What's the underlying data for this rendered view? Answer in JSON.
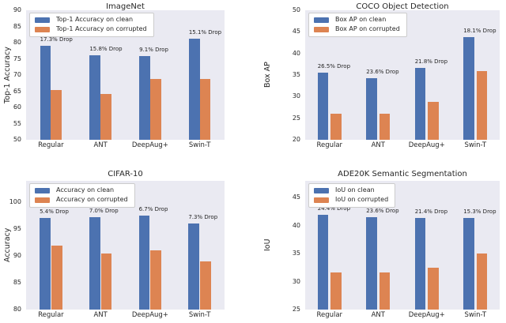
{
  "figure": {
    "background": "#ffffff"
  },
  "colors": {
    "clean_bar": "#4c72b0",
    "corrupted_bar": "#dd8452",
    "plot_background": "#eaeaf2",
    "text": "#262626",
    "legend_border": "#cccccc"
  },
  "chart_data": [
    {
      "type": "bar",
      "title": "ImageNet",
      "ylabel": "Top-1 Accuracy",
      "ylim": [
        50,
        90
      ],
      "yticks": [
        50,
        55,
        60,
        65,
        70,
        75,
        80,
        85,
        90
      ],
      "categories": [
        "Regular",
        "ANT",
        "DeepAug+",
        "Swin-T"
      ],
      "series": [
        {
          "name": "Top-1 Accuracy on clean",
          "color": "#4c72b0",
          "values": [
            79.0,
            76.1,
            75.8,
            81.2
          ]
        },
        {
          "name": "Top-1 Accuracy on corrupted",
          "color": "#dd8452",
          "values": [
            65.3,
            64.1,
            68.9,
            68.9
          ]
        }
      ],
      "annotations": [
        "17.3% Drop",
        "15.8% Drop",
        "9.1% Drop",
        "15.1% Drop"
      ],
      "legend_position": "upper-left",
      "grid": false
    },
    {
      "type": "bar",
      "title": "COCO Object Detection",
      "ylabel": "Box AP",
      "ylim": [
        20,
        50
      ],
      "yticks": [
        20,
        25,
        30,
        35,
        40,
        45,
        50
      ],
      "categories": [
        "Regular",
        "ANT",
        "DeepAug+",
        "Swin-T"
      ],
      "series": [
        {
          "name": "Box AP on clean",
          "color": "#4c72b0",
          "values": [
            35.5,
            34.2,
            36.7,
            43.8
          ]
        },
        {
          "name": "Box AP on corrupted",
          "color": "#dd8452",
          "values": [
            26.1,
            26.1,
            28.7,
            35.9
          ]
        }
      ],
      "annotations": [
        "26.5% Drop",
        "23.6% Drop",
        "21.8% Drop",
        "18.1% Drop"
      ],
      "legend_position": "upper-left",
      "grid": false
    },
    {
      "type": "bar",
      "title": "CIFAR-10",
      "ylabel": "Accuracy",
      "ylim": [
        80,
        104
      ],
      "yticks": [
        80,
        85,
        90,
        95,
        100
      ],
      "categories": [
        "Regular",
        "ANT",
        "DeepAug+",
        "Swin-T"
      ],
      "series": [
        {
          "name": "Accuracy on clean",
          "color": "#4c72b0",
          "values": [
            97.1,
            97.3,
            97.5,
            96.0
          ]
        },
        {
          "name": "Accuracy on corrupted",
          "color": "#dd8452",
          "values": [
            91.9,
            90.5,
            91.0,
            89.0
          ]
        }
      ],
      "annotations": [
        "5.4% Drop",
        "7.0% Drop",
        "6.7% Drop",
        "7.3% Drop"
      ],
      "legend_position": "upper-left",
      "grid": false
    },
    {
      "type": "bar",
      "title": "ADE20K Semantic Segmentation",
      "ylabel": "IoU",
      "ylim": [
        25,
        48
      ],
      "yticks": [
        25,
        30,
        35,
        40,
        45
      ],
      "categories": [
        "Regular",
        "ANT",
        "DeepAug+",
        "Swin-T"
      ],
      "series": [
        {
          "name": "IoU on clean",
          "color": "#4c72b0",
          "values": [
            41.9,
            41.5,
            41.3,
            41.3
          ]
        },
        {
          "name": "IoU on corrupted",
          "color": "#dd8452",
          "values": [
            31.7,
            31.7,
            32.5,
            35.0
          ]
        }
      ],
      "annotations": [
        "24.4% Drop",
        "23.6% Drop",
        "21.4% Drop",
        "15.3% Drop"
      ],
      "legend_position": "upper-left",
      "grid": false
    }
  ]
}
